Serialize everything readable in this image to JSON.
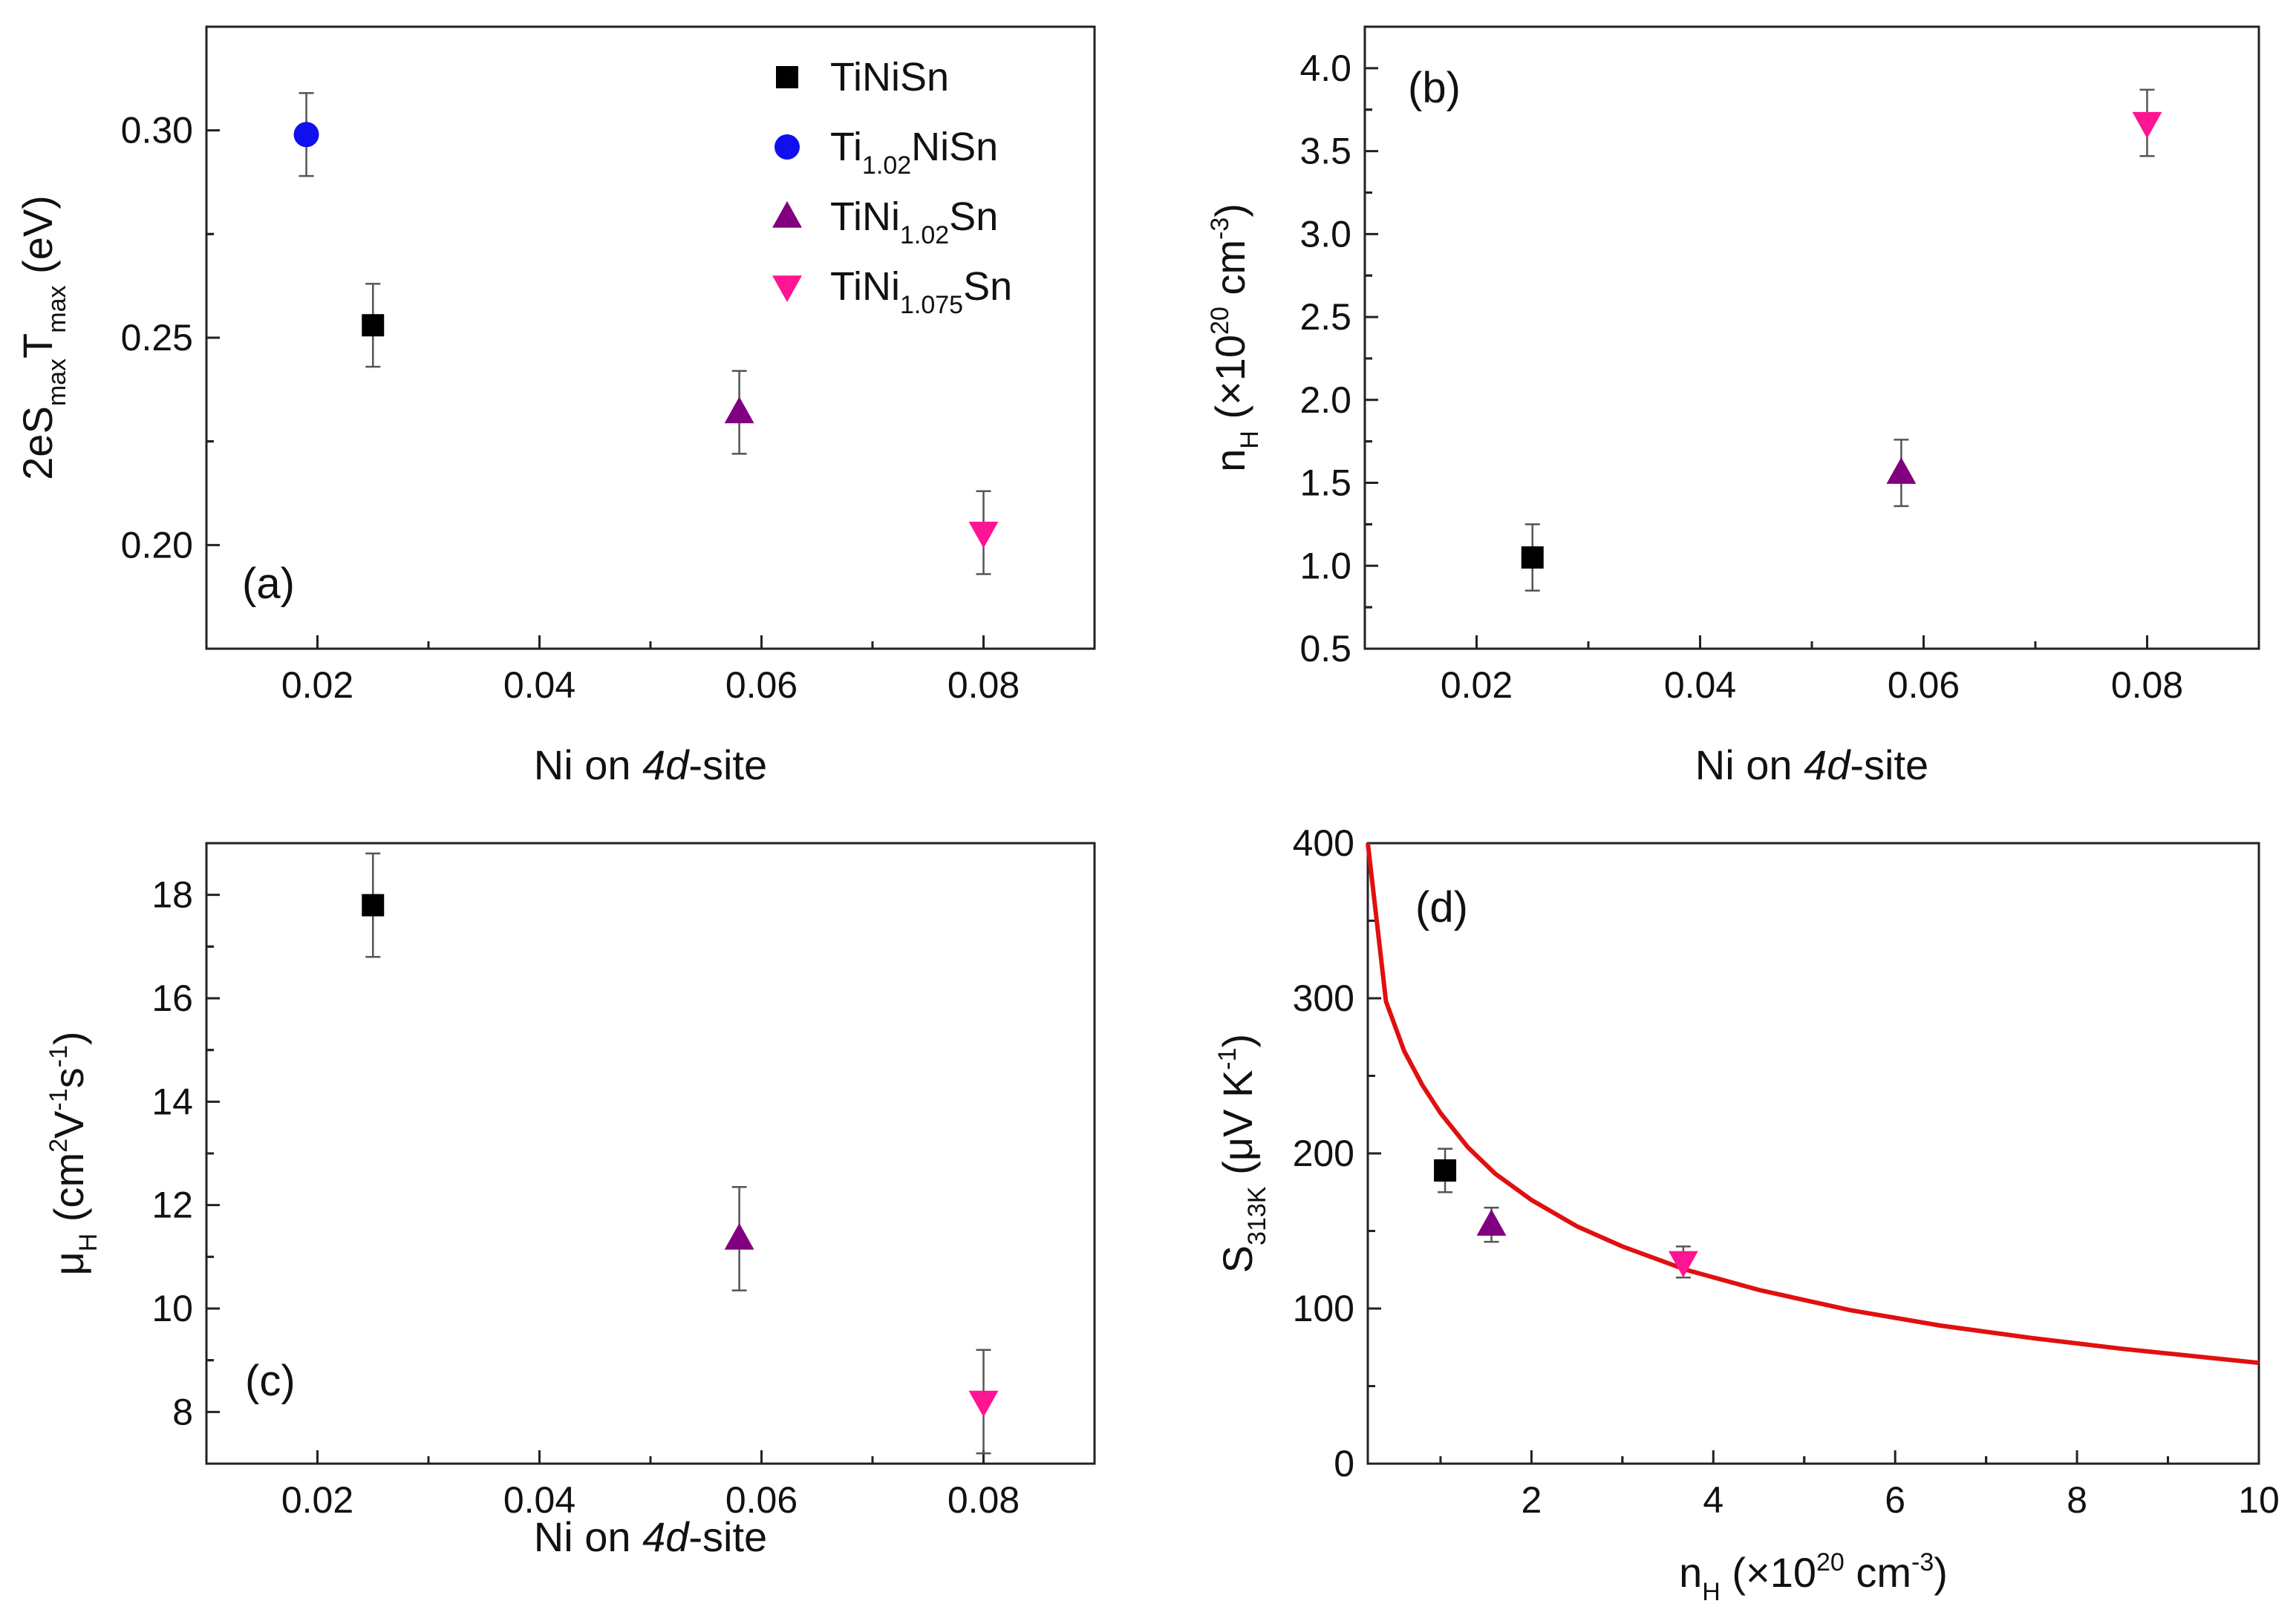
{
  "colors": {
    "TiNiSn": "#000000",
    "Ti1.02NiSn": "#1010ee",
    "TiNi1.02Sn": "#800080",
    "TiNi1.075Sn": "#ff1493",
    "fit": "#e01010"
  },
  "chart_data": [
    {
      "type": "scatter",
      "panel_label": "(a)",
      "xlabel": {
        "pre": "Ni on ",
        "italic": "4d",
        "post": "-site"
      },
      "ylabel": {
        "t1": "2eS",
        "s1": "max",
        "t2": "T",
        "s2": "max",
        "t3": " (eV)"
      },
      "xlim": [
        0.01,
        0.09
      ],
      "ylim": [
        0.175,
        0.325
      ],
      "xticks": [
        0.02,
        0.04,
        0.06,
        0.08
      ],
      "xtick_labels": [
        "0.02",
        "0.04",
        "0.06",
        "0.08"
      ],
      "yticks": [
        0.2,
        0.25,
        0.3
      ],
      "ytick_labels": [
        "0.20",
        "0.25",
        "0.30"
      ],
      "legend": {
        "placement": "top-right",
        "entries": [
          {
            "series": "TiNiSn",
            "parts": [
              {
                "t": "TiNiSn"
              }
            ]
          },
          {
            "series": "Ti1.02NiSn",
            "parts": [
              {
                "t": "Ti"
              },
              {
                "t": "1.02",
                "sub": true
              },
              {
                "t": "NiSn"
              }
            ]
          },
          {
            "series": "TiNi1.02Sn",
            "parts": [
              {
                "t": "TiNi"
              },
              {
                "t": "1.02",
                "sub": true
              },
              {
                "t": "Sn"
              }
            ]
          },
          {
            "series": "TiNi1.075Sn",
            "parts": [
              {
                "t": "TiNi"
              },
              {
                "t": "1.075",
                "sub": true
              },
              {
                "t": "Sn"
              }
            ]
          }
        ]
      },
      "series": [
        {
          "name": "TiNiSn",
          "marker": "square",
          "x": 0.025,
          "y": 0.253,
          "err": 0.01
        },
        {
          "name": "Ti1.02NiSn",
          "marker": "circle",
          "x": 0.019,
          "y": 0.299,
          "err": 0.01
        },
        {
          "name": "TiNi1.02Sn",
          "marker": "triangle-up",
          "x": 0.058,
          "y": 0.232,
          "err": 0.01
        },
        {
          "name": "TiNi1.075Sn",
          "marker": "triangle-down",
          "x": 0.08,
          "y": 0.203,
          "err": 0.01
        }
      ]
    },
    {
      "type": "scatter",
      "panel_label": "(b)",
      "xlabel": {
        "pre": "Ni on ",
        "italic": "4d",
        "post": "-site"
      },
      "ylabel": {
        "t1": "n",
        "s1": "H",
        "t2": " (×10",
        "p1": "20",
        "t3": " cm",
        "p2": "-3",
        "t4": ")"
      },
      "xlim": [
        0.01,
        0.09
      ],
      "ylim": [
        0.5,
        4.25
      ],
      "xticks": [
        0.02,
        0.04,
        0.06,
        0.08
      ],
      "xtick_labels": [
        "0.02",
        "0.04",
        "0.06",
        "0.08"
      ],
      "yticks": [
        0.5,
        1.0,
        1.5,
        2.0,
        2.5,
        3.0,
        3.5,
        4.0
      ],
      "ytick_labels": [
        "0.5",
        "1.0",
        "1.5",
        "2.0",
        "2.5",
        "3.0",
        "3.5",
        "4.0"
      ],
      "series": [
        {
          "name": "TiNiSn",
          "marker": "square",
          "x": 0.025,
          "y": 1.05,
          "err": 0.2
        },
        {
          "name": "TiNi1.02Sn",
          "marker": "triangle-up",
          "x": 0.058,
          "y": 1.56,
          "err": 0.2
        },
        {
          "name": "TiNi1.075Sn",
          "marker": "triangle-down",
          "x": 0.08,
          "y": 3.67,
          "err": 0.2
        }
      ]
    },
    {
      "type": "scatter",
      "panel_label": "(c)",
      "xlabel": {
        "pre": "Ni on ",
        "italic": "4d",
        "post": "-site"
      },
      "ylabel": {
        "t1": "μ",
        "s1": "H",
        "t2": " (cm",
        "p1": "2",
        "t3": "V",
        "p2": "-1",
        "t4": "s",
        "p3": "-1",
        "t5": ")"
      },
      "xlim": [
        0.01,
        0.09
      ],
      "ylim": [
        7.0,
        19.0
      ],
      "xticks": [
        0.02,
        0.04,
        0.06,
        0.08
      ],
      "xtick_labels": [
        "0.02",
        "0.04",
        "0.06",
        "0.08"
      ],
      "yticks": [
        8,
        10,
        12,
        14,
        16,
        18
      ],
      "ytick_labels": [
        "8",
        "10",
        "12",
        "14",
        "16",
        "18"
      ],
      "series": [
        {
          "name": "TiNiSn",
          "marker": "square",
          "x": 0.025,
          "y": 17.8,
          "err": 1.0
        },
        {
          "name": "TiNi1.02Sn",
          "marker": "triangle-up",
          "x": 0.058,
          "y": 11.35,
          "err": 1.0
        },
        {
          "name": "TiNi1.075Sn",
          "marker": "triangle-down",
          "x": 0.08,
          "y": 8.2,
          "err": 1.0
        }
      ]
    },
    {
      "type": "scatter",
      "panel_label": "(d)",
      "xlabel": {
        "t1": "n",
        "s1": "H",
        "t2": " (×10",
        "p1": "20",
        "t3": " cm",
        "p2": "-3",
        "t4": ")"
      },
      "ylabel": {
        "t1": "S",
        "s1": "313K",
        "t2": " (μV K",
        "p1": "-1",
        "t3": ")"
      },
      "xlim": [
        0.2,
        10
      ],
      "ylim": [
        0,
        400
      ],
      "xticks": [
        2,
        4,
        6,
        8,
        10
      ],
      "xtick_labels": [
        "2",
        "4",
        "6",
        "8",
        "10"
      ],
      "yticks": [
        0,
        100,
        200,
        300,
        400
      ],
      "ytick_labels": [
        "0",
        "100",
        "200",
        "300",
        "400"
      ],
      "series": [
        {
          "name": "TiNiSn",
          "marker": "square",
          "x": 1.05,
          "y": 189,
          "err": 14
        },
        {
          "name": "TiNi1.02Sn",
          "marker": "triangle-up",
          "x": 1.56,
          "y": 154,
          "err": 11
        },
        {
          "name": "TiNi1.075Sn",
          "marker": "triangle-down",
          "x": 3.67,
          "y": 130,
          "err": 10
        }
      ],
      "curve": {
        "name": "fit",
        "x": [
          0.2,
          0.4,
          0.6,
          0.8,
          1.0,
          1.3,
          1.6,
          2.0,
          2.5,
          3.0,
          3.7,
          4.5,
          5.5,
          6.5,
          7.5,
          8.5,
          10.0
        ],
        "y": [
          400,
          298,
          266,
          244,
          226,
          204,
          187,
          170,
          153,
          140,
          125,
          112,
          99,
          89,
          81,
          74,
          65
        ]
      }
    }
  ]
}
